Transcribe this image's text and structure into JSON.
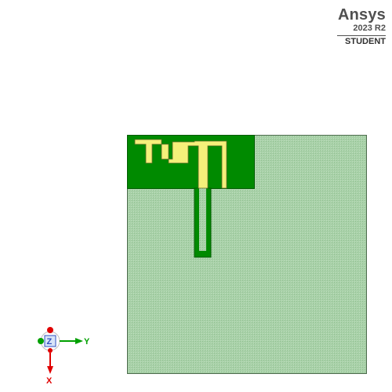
{
  "brand": {
    "name": "Ansys",
    "version": "2023 R2",
    "edition": "STUDENT"
  },
  "model": {
    "substrate_color": "#a8d0a8",
    "substrate_edge_color": "#4a6a4a",
    "ground_color": "#008a00",
    "trace_color": "#f5f07a",
    "trace_edge_color": "#6b6b2a"
  },
  "triad": {
    "z_label": "Z",
    "y_label": "Y",
    "x_label": "X",
    "y_color": "#00a000",
    "x_color": "#e00000",
    "z_color": "#3050c0"
  }
}
